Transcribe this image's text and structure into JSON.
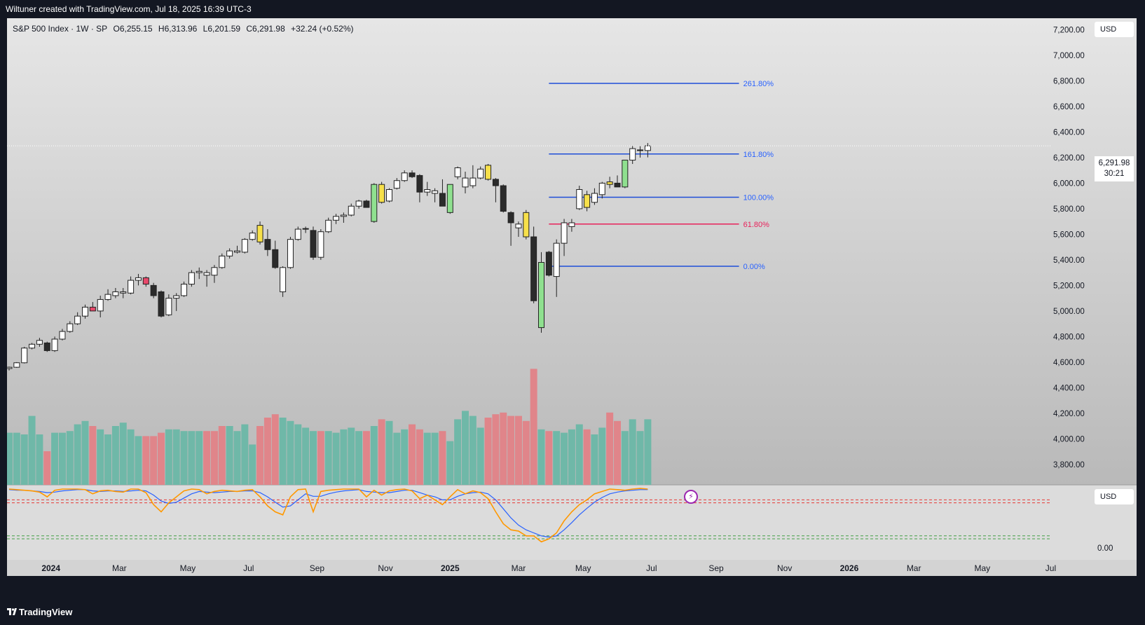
{
  "caption": "Wiltuner created with TradingView.com, Jul 18, 2025 16:39 UTC-3",
  "brand": "TradingView",
  "legend": {
    "symbol": "S&P 500 Index · 1W · SP",
    "open": "O6,255.15",
    "high": "H6,313.96",
    "low": "L6,201.59",
    "close": "C6,291.98",
    "change": "+32.24 (+0.52%)"
  },
  "price_label": {
    "price": "6,291.98",
    "timer": "30:21"
  },
  "currency": "USD",
  "icons": {
    "bolt": "lightning-icon",
    "logo": "tradingview-logo-icon"
  },
  "colors": {
    "up_body": "#ffffff",
    "down_body": "#2b2b2b",
    "yellow": "#f7e04a",
    "green": "#8fe08f",
    "red": "#e8496b",
    "vol_up": "#6fb8a8",
    "vol_down": "#e0858a",
    "fib_blue": "#1f4ed8",
    "fib_red": "#e8215a",
    "fib_label_blue": "#2962ff",
    "fib_label_red": "#e8215a",
    "rsi_fast": "#ff9800",
    "rsi_slow": "#2962ff"
  },
  "chart_data": {
    "type": "candlestick",
    "symbol": "S&P 500 Index",
    "interval": "1W",
    "ylim": [
      3640,
      7290
    ],
    "yticks": [
      3800,
      4000,
      4200,
      4400,
      4600,
      4800,
      5000,
      5200,
      5400,
      5600,
      5800,
      6000,
      6200,
      6400,
      6600,
      6800,
      7000,
      7200
    ],
    "ytick_labels": [
      "3,800.00",
      "4,000.00",
      "4,200.00",
      "4,400.00",
      "4,600.00",
      "4,800.00",
      "5,000.00",
      "5,200.00",
      "5,400.00",
      "5,600.00",
      "5,800.00",
      "6,000.00",
      "6,200.00",
      "6,400.00",
      "6,600.00",
      "6,800.00",
      "7,000.00",
      "7,200.00"
    ],
    "xticks": [
      {
        "label": "2024",
        "index": 5.5,
        "bold": true
      },
      {
        "label": "Mar",
        "index": 14.5
      },
      {
        "label": "May",
        "index": 23.5
      },
      {
        "label": "Jul",
        "index": 31.5
      },
      {
        "label": "Sep",
        "index": 40.5
      },
      {
        "label": "Nov",
        "index": 49.5
      },
      {
        "label": "2025",
        "index": 58,
        "bold": true
      },
      {
        "label": "Mar",
        "index": 67
      },
      {
        "label": "May",
        "index": 75.5
      },
      {
        "label": "Jul",
        "index": 84.5
      },
      {
        "label": "Sep",
        "index": 93
      },
      {
        "label": "Nov",
        "index": 102
      },
      {
        "label": "2026",
        "index": 110.5,
        "bold": true
      },
      {
        "label": "Mar",
        "index": 119
      },
      {
        "label": "May",
        "index": 128
      },
      {
        "label": "Jul",
        "index": 137
      }
    ],
    "candles": [
      {
        "o": 4550,
        "h": 4565,
        "l": 4535,
        "c": 4560,
        "t": "up"
      },
      {
        "o": 4560,
        "h": 4600,
        "l": 4555,
        "c": 4595,
        "t": "up"
      },
      {
        "o": 4595,
        "h": 4720,
        "l": 4590,
        "c": 4710,
        "t": "up"
      },
      {
        "o": 4710,
        "h": 4750,
        "l": 4700,
        "c": 4740,
        "t": "up"
      },
      {
        "o": 4740,
        "h": 4790,
        "l": 4720,
        "c": 4770,
        "t": "up"
      },
      {
        "o": 4750,
        "h": 4760,
        "l": 4680,
        "c": 4690,
        "t": "down"
      },
      {
        "o": 4690,
        "h": 4800,
        "l": 4680,
        "c": 4780,
        "t": "up"
      },
      {
        "o": 4780,
        "h": 4860,
        "l": 4770,
        "c": 4840,
        "t": "up"
      },
      {
        "o": 4840,
        "h": 4920,
        "l": 4830,
        "c": 4900,
        "t": "up"
      },
      {
        "o": 4900,
        "h": 4990,
        "l": 4890,
        "c": 4960,
        "t": "up"
      },
      {
        "o": 4960,
        "h": 5050,
        "l": 4940,
        "c": 5030,
        "t": "up"
      },
      {
        "o": 5030,
        "h": 5070,
        "l": 5010,
        "c": 5000,
        "t": "red"
      },
      {
        "o": 5000,
        "h": 5120,
        "l": 4950,
        "c": 5090,
        "t": "up"
      },
      {
        "o": 5090,
        "h": 5170,
        "l": 5080,
        "c": 5130,
        "t": "up"
      },
      {
        "o": 5120,
        "h": 5180,
        "l": 5100,
        "c": 5150,
        "t": "up"
      },
      {
        "o": 5150,
        "h": 5180,
        "l": 5100,
        "c": 5140,
        "t": "up"
      },
      {
        "o": 5140,
        "h": 5270,
        "l": 5130,
        "c": 5240,
        "t": "up"
      },
      {
        "o": 5240,
        "h": 5290,
        "l": 5200,
        "c": 5260,
        "t": "up"
      },
      {
        "o": 5260,
        "h": 5270,
        "l": 5190,
        "c": 5210,
        "t": "red"
      },
      {
        "o": 5200,
        "h": 5220,
        "l": 5100,
        "c": 5120,
        "t": "down"
      },
      {
        "o": 5150,
        "h": 5160,
        "l": 4950,
        "c": 4960,
        "t": "down"
      },
      {
        "o": 4970,
        "h": 5130,
        "l": 4960,
        "c": 5100,
        "t": "up"
      },
      {
        "o": 5100,
        "h": 5140,
        "l": 5000,
        "c": 5120,
        "t": "up"
      },
      {
        "o": 5120,
        "h": 5230,
        "l": 5110,
        "c": 5210,
        "t": "up"
      },
      {
        "o": 5210,
        "h": 5320,
        "l": 5190,
        "c": 5300,
        "t": "up"
      },
      {
        "o": 5300,
        "h": 5340,
        "l": 5250,
        "c": 5310,
        "t": "up"
      },
      {
        "o": 5300,
        "h": 5320,
        "l": 5190,
        "c": 5280,
        "t": "up"
      },
      {
        "o": 5280,
        "h": 5360,
        "l": 5220,
        "c": 5340,
        "t": "up"
      },
      {
        "o": 5340,
        "h": 5450,
        "l": 5330,
        "c": 5430,
        "t": "up"
      },
      {
        "o": 5430,
        "h": 5490,
        "l": 5410,
        "c": 5470,
        "t": "up"
      },
      {
        "o": 5470,
        "h": 5510,
        "l": 5450,
        "c": 5460,
        "t": "up"
      },
      {
        "o": 5460,
        "h": 5570,
        "l": 5450,
        "c": 5560,
        "t": "up"
      },
      {
        "o": 5560,
        "h": 5630,
        "l": 5550,
        "c": 5610,
        "t": "up"
      },
      {
        "o": 5670,
        "h": 5700,
        "l": 5520,
        "c": 5540,
        "t": "yellow"
      },
      {
        "o": 5560,
        "h": 5640,
        "l": 5430,
        "c": 5480,
        "t": "down"
      },
      {
        "o": 5480,
        "h": 5550,
        "l": 5330,
        "c": 5340,
        "t": "down"
      },
      {
        "o": 5340,
        "h": 5350,
        "l": 5110,
        "c": 5150,
        "t": "up"
      },
      {
        "o": 5340,
        "h": 5580,
        "l": 5330,
        "c": 5560,
        "t": "up"
      },
      {
        "o": 5560,
        "h": 5660,
        "l": 5550,
        "c": 5640,
        "t": "up"
      },
      {
        "o": 5640,
        "h": 5660,
        "l": 5610,
        "c": 5645,
        "t": "up"
      },
      {
        "o": 5630,
        "h": 5660,
        "l": 5400,
        "c": 5420,
        "t": "down"
      },
      {
        "o": 5420,
        "h": 5640,
        "l": 5400,
        "c": 5620,
        "t": "up"
      },
      {
        "o": 5620,
        "h": 5730,
        "l": 5610,
        "c": 5710,
        "t": "up"
      },
      {
        "o": 5710,
        "h": 5760,
        "l": 5680,
        "c": 5740,
        "t": "up"
      },
      {
        "o": 5740,
        "h": 5770,
        "l": 5690,
        "c": 5750,
        "t": "up"
      },
      {
        "o": 5750,
        "h": 5840,
        "l": 5740,
        "c": 5820,
        "t": "up"
      },
      {
        "o": 5820,
        "h": 5870,
        "l": 5800,
        "c": 5860,
        "t": "up"
      },
      {
        "o": 5860,
        "h": 5870,
        "l": 5810,
        "c": 5810,
        "t": "down"
      },
      {
        "o": 5700,
        "h": 6000,
        "l": 5690,
        "c": 5990,
        "t": "green"
      },
      {
        "o": 5850,
        "h": 6010,
        "l": 5840,
        "c": 5990,
        "t": "yellow"
      },
      {
        "o": 5860,
        "h": 5960,
        "l": 5850,
        "c": 5950,
        "t": "up"
      },
      {
        "o": 5960,
        "h": 6040,
        "l": 5950,
        "c": 6020,
        "t": "up"
      },
      {
        "o": 6020,
        "h": 6100,
        "l": 6010,
        "c": 6080,
        "t": "up"
      },
      {
        "o": 6080,
        "h": 6100,
        "l": 6040,
        "c": 6050,
        "t": "down"
      },
      {
        "o": 6060,
        "h": 6070,
        "l": 5850,
        "c": 5930,
        "t": "down"
      },
      {
        "o": 5930,
        "h": 6010,
        "l": 5900,
        "c": 5950,
        "t": "up"
      },
      {
        "o": 5940,
        "h": 5960,
        "l": 5850,
        "c": 5920,
        "t": "up"
      },
      {
        "o": 5920,
        "h": 6030,
        "l": 5820,
        "c": 5820,
        "t": "down"
      },
      {
        "o": 5770,
        "h": 5990,
        "l": 5760,
        "c": 5990,
        "t": "green"
      },
      {
        "o": 6050,
        "h": 6130,
        "l": 6030,
        "c": 6120,
        "t": "up"
      },
      {
        "o": 6040,
        "h": 6090,
        "l": 5920,
        "c": 5970,
        "t": "up"
      },
      {
        "o": 5980,
        "h": 6140,
        "l": 5960,
        "c": 6040,
        "t": "up"
      },
      {
        "o": 6040,
        "h": 6130,
        "l": 6030,
        "c": 6110,
        "t": "up"
      },
      {
        "o": 6140,
        "h": 6150,
        "l": 6020,
        "c": 6030,
        "t": "yellow"
      },
      {
        "o": 6030,
        "h": 6040,
        "l": 5850,
        "c": 5980,
        "t": "down"
      },
      {
        "o": 5980,
        "h": 5990,
        "l": 5770,
        "c": 5780,
        "t": "down"
      },
      {
        "o": 5770,
        "h": 5780,
        "l": 5510,
        "c": 5690,
        "t": "down"
      },
      {
        "o": 5680,
        "h": 5700,
        "l": 5580,
        "c": 5650,
        "t": "up"
      },
      {
        "o": 5770,
        "h": 5790,
        "l": 5560,
        "c": 5580,
        "t": "yellow"
      },
      {
        "o": 5580,
        "h": 5660,
        "l": 5060,
        "c": 5080,
        "t": "down"
      },
      {
        "o": 4870,
        "h": 5460,
        "l": 4830,
        "c": 5380,
        "t": "green"
      },
      {
        "o": 5460,
        "h": 5470,
        "l": 5270,
        "c": 5280,
        "t": "down"
      },
      {
        "o": 5270,
        "h": 5560,
        "l": 5110,
        "c": 5530,
        "t": "up"
      },
      {
        "o": 5530,
        "h": 5720,
        "l": 5430,
        "c": 5690,
        "t": "up"
      },
      {
        "o": 5690,
        "h": 5720,
        "l": 5620,
        "c": 5660,
        "t": "up"
      },
      {
        "o": 5800,
        "h": 5980,
        "l": 5790,
        "c": 5950,
        "t": "up"
      },
      {
        "o": 5910,
        "h": 5940,
        "l": 5780,
        "c": 5810,
        "t": "yellow"
      },
      {
        "o": 5850,
        "h": 5960,
        "l": 5830,
        "c": 5920,
        "t": "up"
      },
      {
        "o": 5910,
        "h": 6010,
        "l": 5880,
        "c": 6000,
        "t": "up"
      },
      {
        "o": 5990,
        "h": 6050,
        "l": 5960,
        "c": 6010,
        "t": "yellow"
      },
      {
        "o": 6000,
        "h": 6060,
        "l": 5970,
        "c": 5970,
        "t": "down"
      },
      {
        "o": 5970,
        "h": 6180,
        "l": 5960,
        "c": 6180,
        "t": "green"
      },
      {
        "o": 6180,
        "h": 6290,
        "l": 6150,
        "c": 6270,
        "t": "up"
      },
      {
        "o": 6260,
        "h": 6290,
        "l": 6200,
        "c": 6260,
        "t": "up"
      },
      {
        "o": 6255.15,
        "h": 6313.96,
        "l": 6201.59,
        "c": 6291.98,
        "t": "up"
      }
    ],
    "volume_rel": [
      0.62,
      0.62,
      0.6,
      0.82,
      0.6,
      0.4,
      0.62,
      0.62,
      0.64,
      0.72,
      0.76,
      0.7,
      0.66,
      0.6,
      0.7,
      0.74,
      0.66,
      0.58,
      0.58,
      0.58,
      0.62,
      0.66,
      0.66,
      0.64,
      0.64,
      0.64,
      0.64,
      0.64,
      0.7,
      0.7,
      0.64,
      0.72,
      0.48,
      0.7,
      0.8,
      0.84,
      0.8,
      0.76,
      0.72,
      0.68,
      0.64,
      0.64,
      0.64,
      0.62,
      0.66,
      0.68,
      0.64,
      0.64,
      0.7,
      0.78,
      0.76,
      0.62,
      0.66,
      0.72,
      0.66,
      0.62,
      0.62,
      0.64,
      0.52,
      0.78,
      0.88,
      0.82,
      0.68,
      0.8,
      0.84,
      0.86,
      0.82,
      0.82,
      0.76,
      1.38,
      0.66,
      0.64,
      0.64,
      0.62,
      0.66,
      0.72,
      0.66,
      0.6,
      0.68,
      0.86,
      0.76,
      0.64,
      0.78,
      0.64,
      0.78
    ],
    "volume_types": [
      "up",
      "up",
      "up",
      "up",
      "up",
      "down",
      "up",
      "up",
      "up",
      "up",
      "up",
      "down",
      "up",
      "up",
      "up",
      "up",
      "up",
      "up",
      "down",
      "down",
      "down",
      "up",
      "up",
      "up",
      "up",
      "up",
      "down",
      "down",
      "down",
      "up",
      "up",
      "up",
      "up",
      "down",
      "down",
      "down",
      "up",
      "up",
      "up",
      "up",
      "up",
      "down",
      "up",
      "up",
      "up",
      "up",
      "up",
      "down",
      "up",
      "down",
      "up",
      "up",
      "up",
      "down",
      "down",
      "up",
      "up",
      "down",
      "up",
      "up",
      "up",
      "up",
      "up",
      "down",
      "down",
      "down",
      "down",
      "down",
      "down",
      "down",
      "up",
      "down",
      "up",
      "up",
      "up",
      "up",
      "down",
      "up",
      "up",
      "down",
      "down",
      "up",
      "up",
      "up",
      "up"
    ],
    "fib_levels": [
      {
        "label": "261.80%",
        "price": 6780,
        "color": "blue"
      },
      {
        "label": "161.80%",
        "price": 6228,
        "color": "blue"
      },
      {
        "label": "100.00%",
        "price": 5890,
        "color": "blue"
      },
      {
        "label": "61.80%",
        "price": 5680,
        "color": "red"
      },
      {
        "label": "0.00%",
        "price": 5350,
        "color": "blue"
      }
    ],
    "fib_x_range": [
      71,
      96
    ],
    "current_price": 6291.98,
    "rsi": {
      "ylim": [
        -0.2,
        1.05
      ],
      "ytick_labels": [
        {
          "value": 0,
          "label": "0.00"
        }
      ],
      "upper_bands": [
        0.8,
        0.75
      ],
      "lower_bands": [
        0.2,
        0.15
      ],
      "fast": [
        0.98,
        0.97,
        0.96,
        0.95,
        0.93,
        0.85,
        0.96,
        0.98,
        0.98,
        0.98,
        0.97,
        0.9,
        0.95,
        0.96,
        0.94,
        0.93,
        0.98,
        0.98,
        0.92,
        0.72,
        0.6,
        0.75,
        0.85,
        0.95,
        0.98,
        0.97,
        0.9,
        0.94,
        0.96,
        0.95,
        0.94,
        0.96,
        0.97,
        0.85,
        0.7,
        0.6,
        0.55,
        0.85,
        0.97,
        0.98,
        0.6,
        0.94,
        0.96,
        0.97,
        0.98,
        0.98,
        0.98,
        0.85,
        0.96,
        0.88,
        0.95,
        0.97,
        0.98,
        0.95,
        0.82,
        0.88,
        0.8,
        0.72,
        0.85,
        0.97,
        0.9,
        0.95,
        0.92,
        0.82,
        0.6,
        0.4,
        0.3,
        0.28,
        0.2,
        0.2,
        0.1,
        0.15,
        0.25,
        0.45,
        0.6,
        0.72,
        0.8,
        0.9,
        0.94,
        0.98,
        0.97,
        0.96,
        0.98,
        0.99,
        0.98
      ],
      "slow": [
        0.97,
        0.96,
        0.96,
        0.95,
        0.94,
        0.92,
        0.93,
        0.95,
        0.96,
        0.97,
        0.97,
        0.95,
        0.94,
        0.95,
        0.95,
        0.94,
        0.95,
        0.96,
        0.95,
        0.88,
        0.78,
        0.74,
        0.76,
        0.83,
        0.9,
        0.94,
        0.93,
        0.92,
        0.93,
        0.94,
        0.94,
        0.95,
        0.95,
        0.92,
        0.85,
        0.76,
        0.68,
        0.7,
        0.8,
        0.9,
        0.86,
        0.86,
        0.9,
        0.93,
        0.95,
        0.96,
        0.97,
        0.94,
        0.93,
        0.92,
        0.92,
        0.94,
        0.96,
        0.96,
        0.92,
        0.88,
        0.85,
        0.8,
        0.8,
        0.86,
        0.9,
        0.92,
        0.93,
        0.9,
        0.8,
        0.65,
        0.5,
        0.38,
        0.3,
        0.25,
        0.2,
        0.18,
        0.2,
        0.3,
        0.42,
        0.55,
        0.66,
        0.76,
        0.84,
        0.9,
        0.93,
        0.95,
        0.96,
        0.97,
        0.97
      ]
    }
  }
}
